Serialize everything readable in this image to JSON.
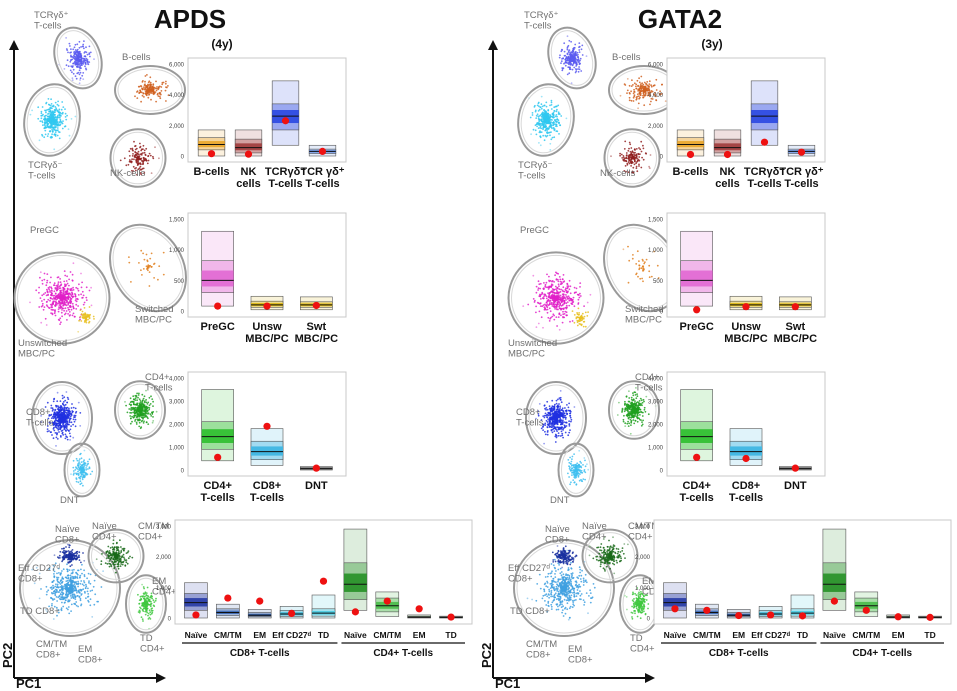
{
  "chart_data": [
    {
      "panel": "APDS",
      "title": "APDS",
      "subtitle": "(4y)",
      "axis_labels": {
        "x": "PC1",
        "y": "PC2"
      },
      "scatter_labels": [
        {
          "key": "tcrgd_pos",
          "text": "TCRγδ⁺\nT-cells"
        },
        {
          "key": "b",
          "text": "B-cells"
        },
        {
          "key": "tcrgd_neg",
          "text": "TCRγδ⁻\nT-cells"
        },
        {
          "key": "nk",
          "text": "NK-cells"
        },
        {
          "key": "pregc",
          "text": "PreGC"
        },
        {
          "key": "switched",
          "text": "Switched\nMBC/PC"
        },
        {
          "key": "unswitched",
          "text": "Unswitched\nMBC/PC"
        },
        {
          "key": "cd8",
          "text": "CD8+\nT-cells"
        },
        {
          "key": "cd4",
          "text": "CD4+\nT-cells"
        },
        {
          "key": "dnt",
          "text": "DNT"
        },
        {
          "key": "naive8",
          "text": "Naïve\nCD8+"
        },
        {
          "key": "naive4",
          "text": "Naïve\nCD4+"
        },
        {
          "key": "cmtm4",
          "text": "CM/TM\nCD4+"
        },
        {
          "key": "eff",
          "text": "Eff CD27ᵈ\nCD8+"
        },
        {
          "key": "em4",
          "text": "EM\nCD4+"
        },
        {
          "key": "td8",
          "text": "TD CD8+"
        },
        {
          "key": "td4",
          "text": "TD\nCD4+"
        },
        {
          "key": "cmtm8",
          "text": "CM/TM\nCD8+"
        },
        {
          "key": "em8",
          "text": "EM\nCD8+"
        }
      ],
      "box_charts": [
        {
          "name": "lineages",
          "type": "box",
          "ylim": [
            0,
            6000
          ],
          "ticks": [
            "0",
            "2,000",
            "4,000",
            "6,000"
          ],
          "categories": [
            "B-cells",
            "NK\ncells",
            "TCRγδ⁻\nT-cells",
            "TCR γδ⁺\nT-cells"
          ],
          "boxes": [
            {
              "range": [
                0,
                1700
              ],
              "inner": [
                400,
                1200
              ],
              "median": 750,
              "patient": 150,
              "color": "#e8a020"
            },
            {
              "range": [
                0,
                1700
              ],
              "inner": [
                200,
                1100
              ],
              "median": 550,
              "patient": 120,
              "color": "#9a3030"
            },
            {
              "range": [
                700,
                4900
              ],
              "inner": [
                1700,
                3400
              ],
              "median": 2600,
              "patient": 2300,
              "color": "#1e3ee0"
            },
            {
              "range": [
                0,
                700
              ],
              "inner": [
                150,
                450
              ],
              "median": 300,
              "patient": 300,
              "color": "#5080e0"
            }
          ]
        },
        {
          "name": "bcells",
          "type": "box",
          "ylim": [
            0,
            1500
          ],
          "ticks": [
            "0",
            "500",
            "1,000",
            "1,500"
          ],
          "categories": [
            "PreGC",
            "Unsw\nMBC/PC",
            "Swt\nMBC/PC"
          ],
          "boxes": [
            {
              "range": [
                80,
                1300
              ],
              "inner": [
                300,
                820
              ],
              "median": 500,
              "patient": 80,
              "color": "#e060d0"
            },
            {
              "range": [
                20,
                240
              ],
              "inner": [
                60,
                160
              ],
              "median": 100,
              "patient": 80,
              "color": "#d8b000"
            },
            {
              "range": [
                20,
                230
              ],
              "inner": [
                60,
                150
              ],
              "median": 100,
              "patient": 90,
              "color": "#d8b000"
            }
          ]
        },
        {
          "name": "tcells",
          "type": "box",
          "ylim": [
            0,
            4000
          ],
          "ticks": [
            "0",
            "1,000",
            "2,000",
            "3,000",
            "4,000"
          ],
          "categories": [
            "CD4+\nT-cells",
            "CD8+\nT-cells",
            "DNT"
          ],
          "boxes": [
            {
              "range": [
                400,
                3500
              ],
              "inner": [
                900,
                2100
              ],
              "median": 1450,
              "patient": 550,
              "color": "#22bb22"
            },
            {
              "range": [
                200,
                1800
              ],
              "inner": [
                450,
                1250
              ],
              "median": 800,
              "patient": 1900,
              "color": "#30b0e0"
            },
            {
              "range": [
                0,
                150
              ],
              "inner": [
                30,
                100
              ],
              "median": 70,
              "patient": 80,
              "color": "#555555"
            }
          ]
        },
        {
          "name": "subsets",
          "type": "box",
          "ylim": [
            0,
            3000
          ],
          "ticks": [
            "0",
            "1,000",
            "2,000",
            "3,000"
          ],
          "categories": [
            "Naïve",
            "CM/TM",
            "EM",
            "Eff CD27ᵈ",
            "TD",
            "Naïve",
            "CM/TM",
            "EM",
            "TD"
          ],
          "groups": [
            {
              "label": "CD8+ T-cells",
              "start": 0,
              "end": 4
            },
            {
              "label": "CD4+ T-cells",
              "start": 5,
              "end": 8
            }
          ],
          "boxes": [
            {
              "range": [
                0,
                1150
              ],
              "inner": [
                250,
                800
              ],
              "median": 500,
              "patient": 100,
              "color": "#1a2fa0"
            },
            {
              "range": [
                0,
                450
              ],
              "inner": [
                80,
                300
              ],
              "median": 180,
              "patient": 650,
              "color": "#3060b0"
            },
            {
              "range": [
                0,
                280
              ],
              "inner": [
                40,
                180
              ],
              "median": 90,
              "patient": 550,
              "color": "#2050a0"
            },
            {
              "range": [
                0,
                380
              ],
              "inner": [
                50,
                250
              ],
              "median": 130,
              "patient": 150,
              "color": "#30b0d0"
            },
            {
              "range": [
                0,
                750
              ],
              "inner": [
                60,
                300
              ],
              "median": 160,
              "patient": 1200,
              "color": "#40c8e0"
            },
            {
              "range": [
                250,
                2900
              ],
              "inner": [
                600,
                1800
              ],
              "median": 1100,
              "patient": 200,
              "color": "#1a8a1a"
            },
            {
              "range": [
                50,
                850
              ],
              "inner": [
                200,
                650
              ],
              "median": 400,
              "patient": 550,
              "color": "#40b840"
            },
            {
              "range": [
                0,
                100
              ],
              "inner": [
                10,
                60
              ],
              "median": 30,
              "patient": 300,
              "color": "#66cc66"
            },
            {
              "range": [
                0,
                60
              ],
              "inner": [
                5,
                35
              ],
              "median": 20,
              "patient": 30,
              "color": "#99dd99"
            }
          ]
        }
      ]
    },
    {
      "panel": "GATA2",
      "title": "GATA2",
      "subtitle": "(3y)",
      "axis_labels": {
        "x": "PC1",
        "y": "PC2"
      },
      "scatter_labels": [
        {
          "key": "tcrgd_pos",
          "text": "TCRγδ⁺\nT-cells"
        },
        {
          "key": "b",
          "text": "B-cells"
        },
        {
          "key": "tcrgd_neg",
          "text": "TCRγδ⁻\nT-cells"
        },
        {
          "key": "nk",
          "text": "NK-cells"
        },
        {
          "key": "pregc",
          "text": "PreGC"
        },
        {
          "key": "switched",
          "text": "Switched\nMBC/PC"
        },
        {
          "key": "unswitched",
          "text": "Unswitched\nMBC/PC"
        },
        {
          "key": "cd8",
          "text": "CD8+\nT-cells"
        },
        {
          "key": "cd4",
          "text": "CD4+\nT-cells"
        },
        {
          "key": "dnt",
          "text": "DNT"
        },
        {
          "key": "naive8",
          "text": "Naïve\nCD8+"
        },
        {
          "key": "naive4",
          "text": "Naïve\nCD4+"
        },
        {
          "key": "cmtm4",
          "text": "CM/TM\nCD4+"
        },
        {
          "key": "eff",
          "text": "Eff CD27ᵈ\nCD8+"
        },
        {
          "key": "em4",
          "text": "EM\nCD4+"
        },
        {
          "key": "td8",
          "text": "TD CD8+"
        },
        {
          "key": "td4",
          "text": "TD\nCD4+"
        },
        {
          "key": "cmtm8",
          "text": "CM/TM\nCD8+"
        },
        {
          "key": "em8",
          "text": "EM\nCD8+"
        }
      ],
      "box_charts": [
        {
          "name": "lineages",
          "type": "box",
          "ylim": [
            0,
            6000
          ],
          "ticks": [
            "0",
            "2,000",
            "4,000",
            "6,000"
          ],
          "categories": [
            "B-cells",
            "NK\ncells",
            "TCRγδ⁻\nT-cells",
            "TCR γδ⁺\nT-cells"
          ],
          "boxes": [
            {
              "range": [
                0,
                1700
              ],
              "inner": [
                400,
                1200
              ],
              "median": 750,
              "patient": 100,
              "color": "#e8a020"
            },
            {
              "range": [
                0,
                1700
              ],
              "inner": [
                200,
                1100
              ],
              "median": 550,
              "patient": 100,
              "color": "#9a3030"
            },
            {
              "range": [
                700,
                4900
              ],
              "inner": [
                1700,
                3400
              ],
              "median": 2600,
              "patient": 900,
              "color": "#1e3ee0"
            },
            {
              "range": [
                0,
                700
              ],
              "inner": [
                150,
                450
              ],
              "median": 300,
              "patient": 250,
              "color": "#5080e0"
            }
          ]
        },
        {
          "name": "bcells",
          "type": "box",
          "ylim": [
            0,
            1500
          ],
          "ticks": [
            "0",
            "500",
            "1,000",
            "1,500"
          ],
          "categories": [
            "PreGC",
            "Unsw\nMBC/PC",
            "Swt\nMBC/PC"
          ],
          "boxes": [
            {
              "range": [
                80,
                1300
              ],
              "inner": [
                300,
                820
              ],
              "median": 500,
              "patient": 20,
              "color": "#e060d0"
            },
            {
              "range": [
                20,
                240
              ],
              "inner": [
                60,
                160
              ],
              "median": 100,
              "patient": 70,
              "color": "#d8b000"
            },
            {
              "range": [
                20,
                230
              ],
              "inner": [
                60,
                150
              ],
              "median": 100,
              "patient": 70,
              "color": "#d8b000"
            }
          ]
        },
        {
          "name": "tcells",
          "type": "box",
          "ylim": [
            0,
            4000
          ],
          "ticks": [
            "0",
            "1,000",
            "2,000",
            "3,000",
            "4,000"
          ],
          "categories": [
            "CD4+\nT-cells",
            "CD8+\nT-cells",
            "DNT"
          ],
          "boxes": [
            {
              "range": [
                400,
                3500
              ],
              "inner": [
                900,
                2100
              ],
              "median": 1450,
              "patient": 550,
              "color": "#22bb22"
            },
            {
              "range": [
                200,
                1800
              ],
              "inner": [
                450,
                1250
              ],
              "median": 800,
              "patient": 500,
              "color": "#30b0e0"
            },
            {
              "range": [
                0,
                150
              ],
              "inner": [
                30,
                100
              ],
              "median": 70,
              "patient": 80,
              "color": "#555555"
            }
          ]
        },
        {
          "name": "subsets",
          "type": "box",
          "ylim": [
            0,
            3000
          ],
          "ticks": [
            "0",
            "1,000",
            "2,000",
            "3,000"
          ],
          "categories": [
            "Naïve",
            "CM/TM",
            "EM",
            "Eff CD27ᵈ",
            "TD",
            "Naïve",
            "CM/TM",
            "EM",
            "TD"
          ],
          "groups": [
            {
              "label": "CD8+ T-cells",
              "start": 0,
              "end": 4
            },
            {
              "label": "CD4+ T-cells",
              "start": 5,
              "end": 8
            }
          ],
          "boxes": [
            {
              "range": [
                0,
                1150
              ],
              "inner": [
                250,
                800
              ],
              "median": 500,
              "patient": 300,
              "color": "#1a2fa0"
            },
            {
              "range": [
                0,
                450
              ],
              "inner": [
                80,
                300
              ],
              "median": 180,
              "patient": 250,
              "color": "#3060b0"
            },
            {
              "range": [
                0,
                280
              ],
              "inner": [
                40,
                180
              ],
              "median": 90,
              "patient": 80,
              "color": "#2050a0"
            },
            {
              "range": [
                0,
                380
              ],
              "inner": [
                50,
                250
              ],
              "median": 130,
              "patient": 100,
              "color": "#30b0d0"
            },
            {
              "range": [
                0,
                750
              ],
              "inner": [
                60,
                300
              ],
              "median": 160,
              "patient": 70,
              "color": "#40c8e0"
            },
            {
              "range": [
                250,
                2900
              ],
              "inner": [
                600,
                1800
              ],
              "median": 1100,
              "patient": 550,
              "color": "#1a8a1a"
            },
            {
              "range": [
                50,
                850
              ],
              "inner": [
                200,
                650
              ],
              "median": 400,
              "patient": 250,
              "color": "#40b840"
            },
            {
              "range": [
                0,
                100
              ],
              "inner": [
                10,
                60
              ],
              "median": 30,
              "patient": 40,
              "color": "#66cc66"
            },
            {
              "range": [
                0,
                60
              ],
              "inner": [
                5,
                35
              ],
              "median": 20,
              "patient": 20,
              "color": "#99dd99"
            }
          ]
        }
      ]
    }
  ]
}
